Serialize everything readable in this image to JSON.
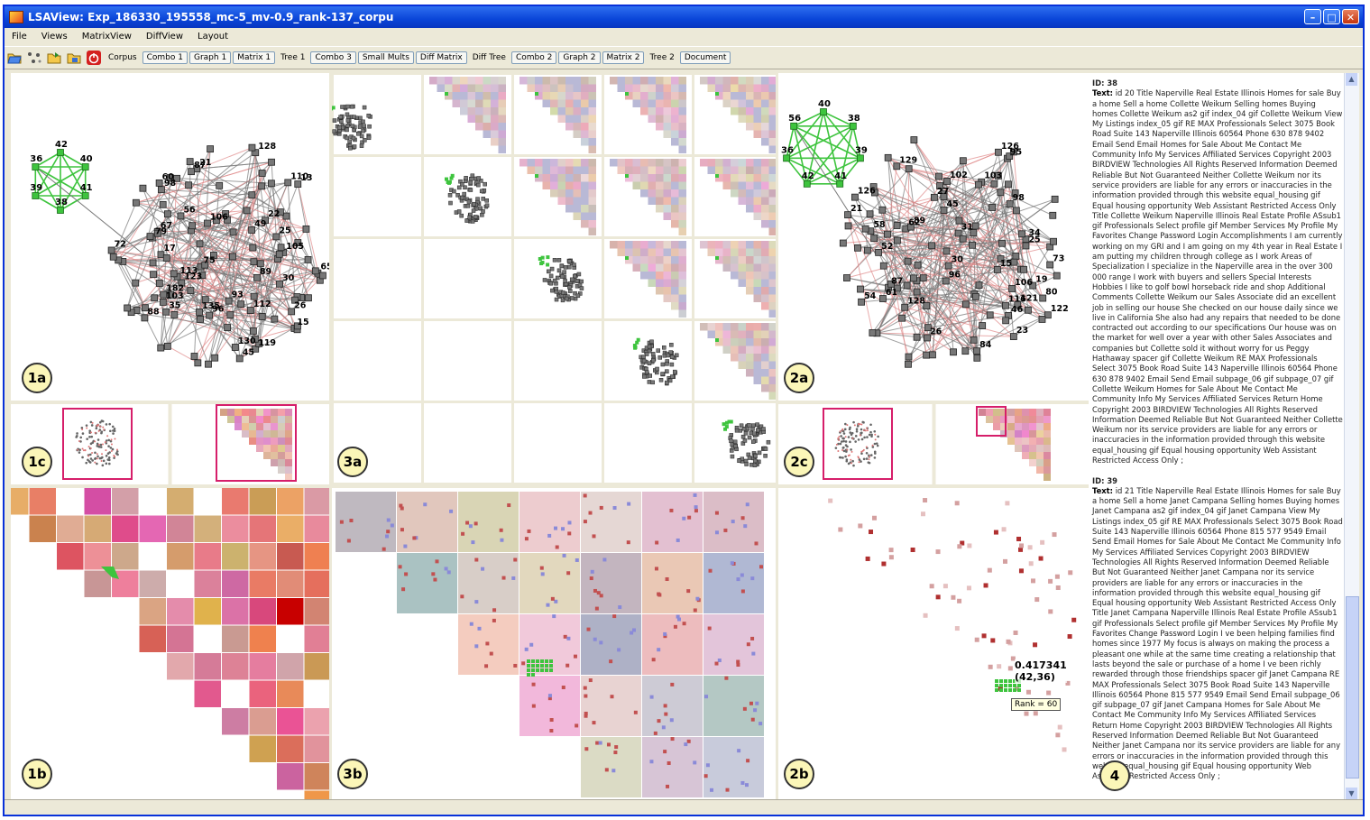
{
  "window": {
    "title": "LSAView: Exp_186330_195558_mc-5_mv-0.9_rank-137_corpu"
  },
  "menu": [
    "File",
    "Views",
    "MatrixView",
    "DiffView",
    "Layout"
  ],
  "toolbar": {
    "icons": [
      "open-folder-icon",
      "graph-nodes-icon",
      "open-file-icon",
      "save-icon",
      "power-icon"
    ],
    "corpus_label": "Corpus",
    "buttons_1": [
      "Combo 1",
      "Graph 1",
      "Matrix 1"
    ],
    "tree1_label": "Tree 1",
    "buttons_2": [
      "Combo 3",
      "Small Mults",
      "Diff Matrix"
    ],
    "difftree_label": "Diff Tree",
    "buttons_3": [
      "Combo 2",
      "Graph 2",
      "Matrix 2"
    ],
    "tree2_label": "Tree 2",
    "document_button": "Document"
  },
  "panels": {
    "p1a": "1a",
    "p1b": "1b",
    "p1c": "1c",
    "p2a": "2a",
    "p2b": "2b",
    "p2c": "2c",
    "p3a": "3a",
    "p3b": "3b",
    "p4": "4"
  },
  "graph1": {
    "green_nodes": [
      "42",
      "40",
      "41",
      "38",
      "39",
      "36"
    ],
    "gray_labels": [
      "13",
      "30",
      "49",
      "35",
      "56",
      "15",
      "123",
      "17",
      "26",
      "135",
      "65",
      "119",
      "113",
      "67",
      "21",
      "89",
      "75",
      "105",
      "98",
      "22",
      "103",
      "88",
      "182",
      "93",
      "106",
      "130",
      "128",
      "110",
      "87",
      "72",
      "96",
      "112",
      "60",
      "45",
      "25",
      "79"
    ]
  },
  "graph2": {
    "green_nodes": [
      "40",
      "38",
      "39",
      "41",
      "42",
      "36",
      "56"
    ],
    "gray_labels": [
      "30",
      "45",
      "34",
      "61",
      "58",
      "46",
      "15",
      "27",
      "19",
      "62",
      "52",
      "122",
      "96",
      "26",
      "21",
      "126",
      "54",
      "31",
      "102",
      "84",
      "116",
      "121",
      "25",
      "98",
      "73",
      "106",
      "87",
      "103",
      "95",
      "80",
      "126",
      "89",
      "23",
      "128",
      "129"
    ]
  },
  "tooltip": {
    "score": "0.417341",
    "coords": "(42,36)",
    "rank": "Rank = 60"
  },
  "document": {
    "entries": [
      {
        "id": "ID: 38",
        "text_label": "Text:",
        "text": "id 20 Title Naperville Real Estate Illinois Homes for sale Buy a home Sell a home Collette Weikum Selling homes Buying homes Collette Weikum as2 gif index_04 gif Collette Weikum View My Listings index_05 gif RE MAX Professionals Select 3075 Book Road Suite 143 Naperville Illinois 60564 Phone 630 878 9402 Email Send Email Homes for Sale About Me Contact Me Community Info My Services Affiliated Services Copyright 2003 BIRDVIEW Technologies All Rights Reserved Information Deemed Reliable But Not Guaranteed Neither Collette Weikum nor its service providers are liable for any errors or inaccuracies in the information provided through this website equal_housing gif Equal housing opportunity Web Assistant Restricted Access Only Title Collette Weikum Naperville Illinois Real Estate Profile ASsub1 gif Professionals Select profile gif Member Services My Profile My Favorites Change Password Login Accomplishments I am currently working on my GRI and I am going on my 4th year in Real Estate I am putting my children through college as I work Areas of Specialization I specialize in the Naperville area in the over 300 000 range I work with buyers and sellers Special Interests Hobbies I like to golf bowl horseback ride and shop Additional Comments Collette Weikum our Sales Associate did an excellent job in selling our house She checked on our house daily since we live in California She also had any repairs that needed to be done contracted out according to our specifications Our house was on the market for well over a year with other Sales Associates and companies but Collette sold it without worry for us Peggy Hathaway spacer gif Collette Weikum RE MAX Professionals Select 3075 Book Road Suite 143 Naperville Illinois 60564 Phone 630 878 9402 Email Send Email subpage_06 gif subpage_07 gif Collette Weikum Homes for Sale About Me Contact Me Community Info My Services Affiliated Services Return Home Copyright 2003 BIRDVIEW Technologies All Rights Reserved Information Deemed Reliable But Not Guaranteed Neither Collette Weikum nor its service providers are liable for any errors or inaccuracies in the information provided through this website equal_housing gif Equal housing opportunity Web Assistant Restricted Access Only ;"
      },
      {
        "id": "ID: 39",
        "text_label": "Text:",
        "text": "id 21 Title Naperville Real Estate Illinois Homes for sale Buy a home Sell a home Janet Campana Selling homes Buying homes Janet Campana as2 gif index_04 gif Janet Campana View My Listings index_05 gif RE MAX Professionals Select 3075 Book Road Suite 143 Naperville Illinois 60564 Phone 815 577 9549 Email Send Email Homes for Sale About Me Contact Me Community Info My Services Affiliated Services Copyright 2003 BIRDVIEW Technologies All Rights Reserved Information Deemed Reliable But Not Guaranteed Neither Janet Campana nor its service providers are liable for any errors or inaccuracies in the information provided through this website equal_housing gif Equal housing opportunity Web Assistant Restricted Access Only Title Janet Campana Naperville Illinois Real Estate Profile ASsub1 gif Professionals Select profile gif Member Services My Profile My Favorites Change Password Login I ve been helping families find homes since 1977 My focus is always on making the process a pleasant one while at the same time creating a relationship that lasts beyond the sale or purchase of a home I ve been richly rewarded through those friendships spacer gif Janet Campana RE MAX Professionals Select 3075 Book Road Suite 143 Naperville Illinois 60564 Phone 815 577 9549 Email Send Email subpage_06 gif subpage_07 gif Janet Campana Homes for Sale About Me Contact Me Community Info My Services Affiliated Services Return Home Copyright 2003 BIRDVIEW Technologies All Rights Reserved Information Deemed Reliable But Not Guaranteed Neither Janet Campana nor its service providers are liable for any errors or inaccuracies in the information provided through this website equal_housing gif Equal housing opportunity Web Assistant Restricted Access Only ;"
      }
    ]
  }
}
